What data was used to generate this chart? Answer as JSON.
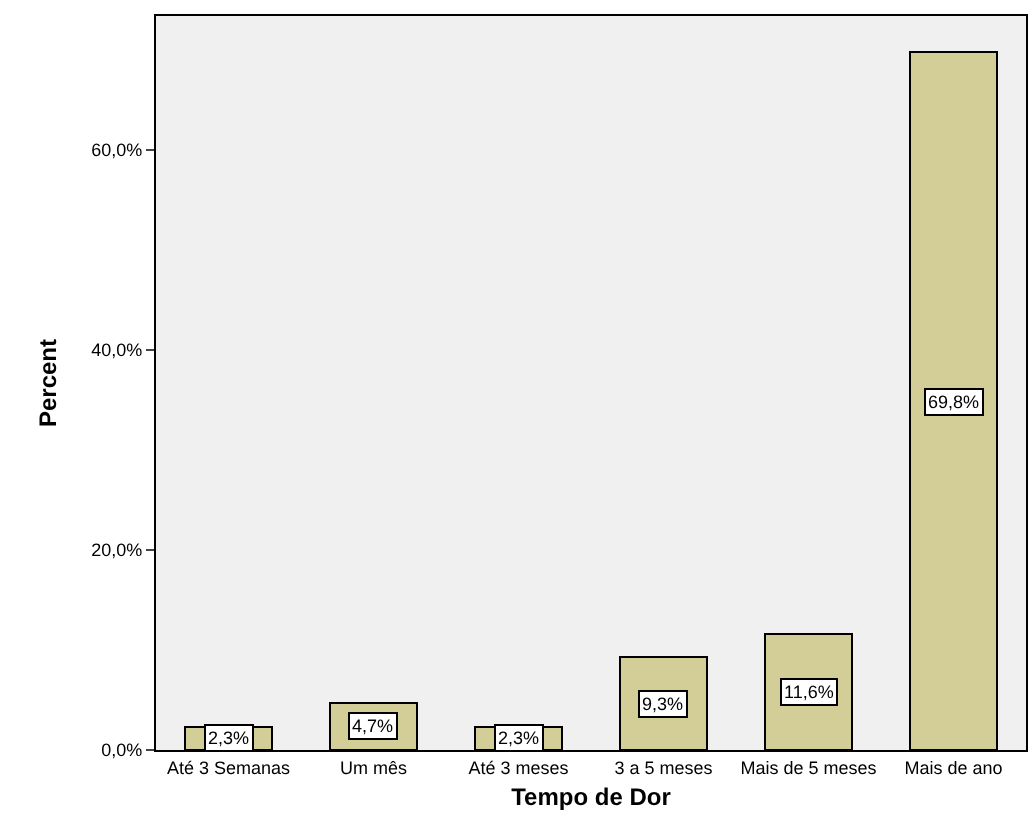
{
  "chart_data": {
    "type": "bar",
    "xlabel": "Tempo de Dor",
    "ylabel": "Percent",
    "categories": [
      "Até 3 Semanas",
      "Um mês",
      "Até 3 meses",
      "3 a 5 meses",
      "Mais de 5 meses",
      "Mais de ano"
    ],
    "values": [
      2.3,
      4.7,
      2.3,
      9.3,
      11.6,
      69.8
    ],
    "value_labels": [
      "2,3%",
      "4,7%",
      "2,3%",
      "9,3%",
      "11,6%",
      "69,8%"
    ],
    "color": "#d3ce97",
    "ylim": [
      0,
      73.4
    ],
    "yticks": [
      {
        "value": 0,
        "label": "0,0%"
      },
      {
        "value": 20,
        "label": "20,0%"
      },
      {
        "value": 40,
        "label": "40,0%"
      },
      {
        "value": 60,
        "label": "60,0%"
      }
    ],
    "grid": false
  }
}
